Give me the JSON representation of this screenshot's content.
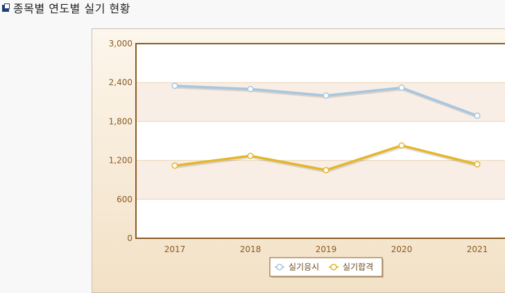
{
  "page": {
    "title": "종목별 연도별 실기 현황"
  },
  "colors": {
    "series_1": "#a8c6df",
    "series_2": "#e5b62a",
    "plot_border": "#8a5a22",
    "tick_text": "#8a5a22",
    "band_light": "#ffffff",
    "band_dark": "#f8eee6"
  },
  "chart_data": {
    "type": "line",
    "categories": [
      "2017",
      "2018",
      "2019",
      "2020",
      "2021"
    ],
    "series": [
      {
        "name": "실기응시",
        "values": [
          2350,
          2300,
          2200,
          2320,
          1890
        ]
      },
      {
        "name": "실기합격",
        "values": [
          1120,
          1270,
          1050,
          1430,
          1140
        ]
      }
    ],
    "ylim": [
      0,
      3000
    ],
    "yticks": [
      0,
      600,
      1200,
      1800,
      2400,
      3000
    ],
    "ytick_labels": [
      "0",
      "600",
      "1,200",
      "1,800",
      "2,400",
      "3,000"
    ],
    "legend_position": "bottom",
    "grid": true
  }
}
